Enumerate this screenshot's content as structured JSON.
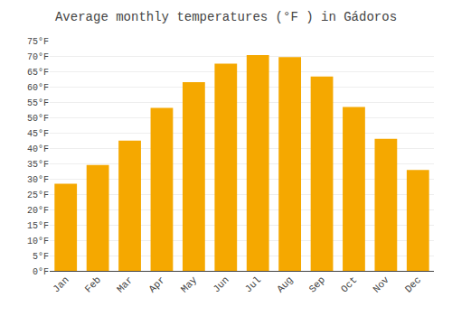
{
  "chart_data": {
    "type": "bar",
    "title": "Average monthly temperatures (°F ) in Gádoros",
    "categories": [
      "Jan",
      "Feb",
      "Mar",
      "Apr",
      "May",
      "Jun",
      "Jul",
      "Aug",
      "Sep",
      "Oct",
      "Nov",
      "Dec"
    ],
    "values": [
      28.4,
      34.5,
      42.4,
      53.1,
      61.5,
      67.5,
      70.3,
      69.6,
      63.3,
      53.4,
      43.0,
      32.9
    ],
    "color": "#F5A800",
    "ylim": [
      0,
      75
    ],
    "yticks": [
      {
        "value": 0,
        "label": "0°F"
      },
      {
        "value": 5,
        "label": "5°F"
      },
      {
        "value": 10,
        "label": "10°F"
      },
      {
        "value": 15,
        "label": "15°F"
      },
      {
        "value": 20,
        "label": "20°F"
      },
      {
        "value": 25,
        "label": "25°F"
      },
      {
        "value": 30,
        "label": "30°F"
      },
      {
        "value": 35,
        "label": "35°F"
      },
      {
        "value": 40,
        "label": "40°F"
      },
      {
        "value": 45,
        "label": "45°F"
      },
      {
        "value": 50,
        "label": "50°F"
      },
      {
        "value": 55,
        "label": "55°F"
      },
      {
        "value": 60,
        "label": "60°F"
      },
      {
        "value": 65,
        "label": "65°F"
      },
      {
        "value": 70,
        "label": "70°F"
      },
      {
        "value": 75,
        "label": "75°F"
      }
    ],
    "grid": true
  }
}
